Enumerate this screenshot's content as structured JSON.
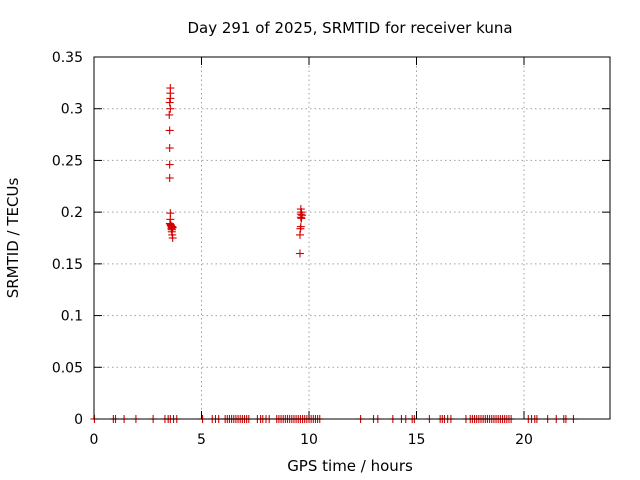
{
  "chart_data": {
    "type": "scatter",
    "title": "Day 291 of 2025, SRMTID for receiver kuna",
    "xlabel": "GPS time / hours",
    "ylabel": "SRMTID / TECUs",
    "xlim": [
      0,
      24
    ],
    "ylim": [
      0,
      0.35
    ],
    "xticks": [
      0,
      5,
      10,
      15,
      20
    ],
    "xtick_labels": [
      "0",
      "5",
      "10",
      "15",
      "20"
    ],
    "yticks": [
      0,
      0.05,
      0.1,
      0.15,
      0.2,
      0.25,
      0.3,
      0.35
    ],
    "ytick_labels": [
      "0",
      "0.05",
      "0.1",
      "0.15",
      "0.2",
      "0.25",
      "0.3",
      "0.35"
    ],
    "grid": true,
    "series": [
      {
        "name": "SRMTID",
        "marker": "+",
        "color": "#d40000",
        "points": [
          [
            3.55,
            0.32
          ],
          [
            3.55,
            0.315
          ],
          [
            3.55,
            0.31
          ],
          [
            3.52,
            0.306
          ],
          [
            3.55,
            0.3
          ],
          [
            3.5,
            0.294
          ],
          [
            3.52,
            0.279
          ],
          [
            3.52,
            0.262
          ],
          [
            3.52,
            0.246
          ],
          [
            3.52,
            0.233
          ],
          [
            3.55,
            0.199
          ],
          [
            3.55,
            0.193
          ],
          [
            3.53,
            0.189
          ],
          [
            3.56,
            0.188
          ],
          [
            3.58,
            0.187
          ],
          [
            3.6,
            0.186
          ],
          [
            3.62,
            0.185
          ],
          [
            3.64,
            0.186
          ],
          [
            3.66,
            0.185
          ],
          [
            3.6,
            0.184
          ],
          [
            3.62,
            0.183
          ],
          [
            3.62,
            0.181
          ],
          [
            3.64,
            0.178
          ],
          [
            3.66,
            0.175
          ],
          [
            9.62,
            0.203
          ],
          [
            9.65,
            0.2
          ],
          [
            9.62,
            0.198
          ],
          [
            9.68,
            0.197
          ],
          [
            9.62,
            0.195
          ],
          [
            9.65,
            0.194
          ],
          [
            9.62,
            0.186
          ],
          [
            9.6,
            0.184
          ],
          [
            9.58,
            0.178
          ],
          [
            9.58,
            0.16
          ],
          [
            0.02,
            0
          ],
          [
            0.9,
            0
          ],
          [
            1.0,
            0
          ],
          [
            1.4,
            0
          ],
          [
            1.95,
            0
          ],
          [
            2.75,
            0
          ],
          [
            3.3,
            0
          ],
          [
            3.45,
            0
          ],
          [
            3.55,
            0
          ],
          [
            3.7,
            0
          ],
          [
            3.85,
            0
          ],
          [
            5.05,
            0
          ],
          [
            5.5,
            0
          ],
          [
            5.65,
            0
          ],
          [
            5.8,
            0
          ],
          [
            6.1,
            0
          ],
          [
            6.2,
            0
          ],
          [
            6.3,
            0
          ],
          [
            6.4,
            0
          ],
          [
            6.5,
            0
          ],
          [
            6.6,
            0
          ],
          [
            6.7,
            0
          ],
          [
            6.8,
            0
          ],
          [
            6.9,
            0
          ],
          [
            7.0,
            0
          ],
          [
            7.1,
            0
          ],
          [
            7.2,
            0
          ],
          [
            7.6,
            0
          ],
          [
            7.75,
            0
          ],
          [
            7.85,
            0
          ],
          [
            8.0,
            0
          ],
          [
            8.15,
            0
          ],
          [
            8.5,
            0
          ],
          [
            8.6,
            0
          ],
          [
            8.7,
            0
          ],
          [
            8.8,
            0
          ],
          [
            8.9,
            0
          ],
          [
            9.0,
            0
          ],
          [
            9.1,
            0
          ],
          [
            9.2,
            0
          ],
          [
            9.3,
            0
          ],
          [
            9.4,
            0
          ],
          [
            9.5,
            0
          ],
          [
            9.6,
            0
          ],
          [
            9.7,
            0
          ],
          [
            9.8,
            0
          ],
          [
            9.9,
            0
          ],
          [
            10.0,
            0
          ],
          [
            10.1,
            0
          ],
          [
            10.2,
            0
          ],
          [
            10.3,
            0
          ],
          [
            10.4,
            0
          ],
          [
            10.5,
            0
          ],
          [
            12.4,
            0
          ],
          [
            13.0,
            0
          ],
          [
            13.2,
            0
          ],
          [
            13.9,
            0
          ],
          [
            14.3,
            0
          ],
          [
            14.5,
            0
          ],
          [
            14.8,
            0
          ],
          [
            14.9,
            0
          ],
          [
            15.6,
            0
          ],
          [
            16.1,
            0
          ],
          [
            16.2,
            0
          ],
          [
            16.3,
            0
          ],
          [
            16.45,
            0
          ],
          [
            16.6,
            0
          ],
          [
            17.3,
            0
          ],
          [
            17.5,
            0
          ],
          [
            17.6,
            0
          ],
          [
            17.7,
            0
          ],
          [
            17.8,
            0
          ],
          [
            17.9,
            0
          ],
          [
            18.0,
            0
          ],
          [
            18.1,
            0
          ],
          [
            18.2,
            0
          ],
          [
            18.3,
            0
          ],
          [
            18.4,
            0
          ],
          [
            18.5,
            0
          ],
          [
            18.6,
            0
          ],
          [
            18.7,
            0
          ],
          [
            18.8,
            0
          ],
          [
            18.9,
            0
          ],
          [
            19.0,
            0
          ],
          [
            19.1,
            0
          ],
          [
            19.2,
            0
          ],
          [
            19.3,
            0
          ],
          [
            19.4,
            0
          ],
          [
            20.2,
            0
          ],
          [
            20.35,
            0
          ],
          [
            20.5,
            0
          ],
          [
            20.6,
            0
          ],
          [
            21.1,
            0
          ],
          [
            21.5,
            0
          ],
          [
            21.85,
            0
          ],
          [
            21.95,
            0
          ],
          [
            22.3,
            0
          ]
        ]
      }
    ]
  }
}
